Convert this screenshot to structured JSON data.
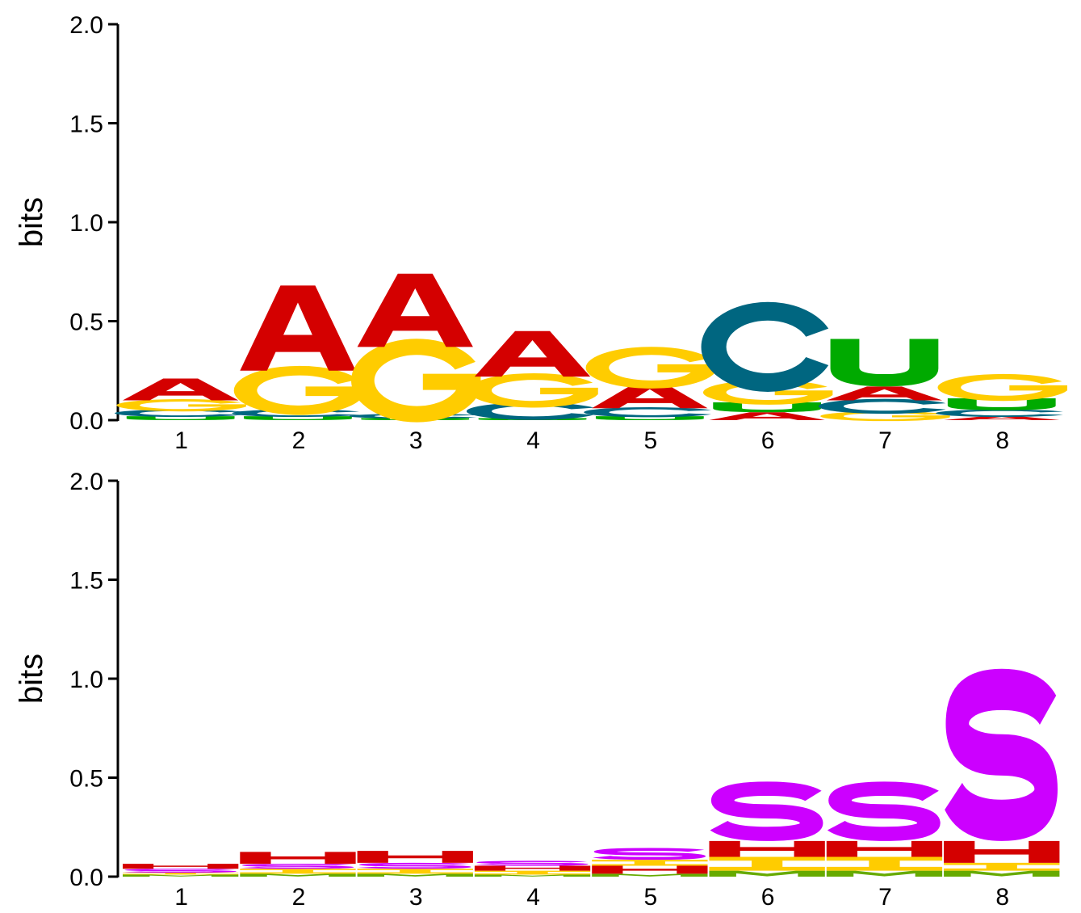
{
  "colors": {
    "A": "#d40000",
    "C": "#006680",
    "G": "#ffcc00",
    "U": "#00aa00",
    "S": "#cc00ff",
    "H": "#d40000",
    "I": "#ffcc00",
    "M": "#66aa00"
  },
  "chart_data": [
    {
      "type": "sequence-logo",
      "ylabel": "bits",
      "ylim": [
        0,
        2.0
      ],
      "yticks": [
        "0.0",
        "0.5",
        "1.0",
        "1.5",
        "2.0"
      ],
      "positions": [
        "1",
        "2",
        "3",
        "4",
        "5",
        "6",
        "7",
        "8"
      ],
      "stacks": [
        [
          {
            "letter": "U",
            "bits": 0.02
          },
          {
            "letter": "C",
            "bits": 0.03
          },
          {
            "letter": "G",
            "bits": 0.05
          },
          {
            "letter": "A",
            "bits": 0.11
          }
        ],
        [
          {
            "letter": "U",
            "bits": 0.02
          },
          {
            "letter": "C",
            "bits": 0.03
          },
          {
            "letter": "G",
            "bits": 0.2
          },
          {
            "letter": "A",
            "bits": 0.43
          }
        ],
        [
          {
            "letter": "U",
            "bits": 0.01
          },
          {
            "letter": "C",
            "bits": 0.02
          },
          {
            "letter": "G",
            "bits": 0.34
          },
          {
            "letter": "A",
            "bits": 0.37
          }
        ],
        [
          {
            "letter": "U",
            "bits": 0.01
          },
          {
            "letter": "C",
            "bits": 0.07
          },
          {
            "letter": "G",
            "bits": 0.14
          },
          {
            "letter": "A",
            "bits": 0.23
          }
        ],
        [
          {
            "letter": "U",
            "bits": 0.02
          },
          {
            "letter": "C",
            "bits": 0.04
          },
          {
            "letter": "A",
            "bits": 0.12
          },
          {
            "letter": "G",
            "bits": 0.17
          }
        ],
        [
          {
            "letter": "A",
            "bits": 0.04
          },
          {
            "letter": "U",
            "bits": 0.05
          },
          {
            "letter": "G",
            "bits": 0.1
          },
          {
            "letter": "C",
            "bits": 0.36
          }
        ],
        [
          {
            "letter": "G",
            "bits": 0.04
          },
          {
            "letter": "C",
            "bits": 0.06
          },
          {
            "letter": "A",
            "bits": 0.07
          },
          {
            "letter": "U",
            "bits": 0.24
          }
        ],
        [
          {
            "letter": "A",
            "bits": 0.02
          },
          {
            "letter": "C",
            "bits": 0.03
          },
          {
            "letter": "U",
            "bits": 0.06
          },
          {
            "letter": "G",
            "bits": 0.11
          }
        ]
      ]
    },
    {
      "type": "sequence-logo",
      "ylabel": "bits",
      "ylim": [
        0,
        2.0
      ],
      "yticks": [
        "0.0",
        "0.5",
        "1.0",
        "1.5",
        "2.0"
      ],
      "positions": [
        "1",
        "2",
        "3",
        "4",
        "5",
        "6",
        "7",
        "8"
      ],
      "stacks": [
        [
          {
            "letter": "M",
            "bits": 0.01
          },
          {
            "letter": "I",
            "bits": 0.01
          },
          {
            "letter": "S",
            "bits": 0.02
          },
          {
            "letter": "H",
            "bits": 0.025
          }
        ],
        [
          {
            "letter": "M",
            "bits": 0.015
          },
          {
            "letter": "I",
            "bits": 0.025
          },
          {
            "letter": "S",
            "bits": 0.025
          },
          {
            "letter": "H",
            "bits": 0.06
          }
        ],
        [
          {
            "letter": "M",
            "bits": 0.015
          },
          {
            "letter": "I",
            "bits": 0.025
          },
          {
            "letter": "S",
            "bits": 0.03
          },
          {
            "letter": "H",
            "bits": 0.06
          }
        ],
        [
          {
            "letter": "M",
            "bits": 0.01
          },
          {
            "letter": "I",
            "bits": 0.02
          },
          {
            "letter": "H",
            "bits": 0.025
          },
          {
            "letter": "S",
            "bits": 0.025
          }
        ],
        [
          {
            "letter": "M",
            "bits": 0.015
          },
          {
            "letter": "H",
            "bits": 0.04
          },
          {
            "letter": "I",
            "bits": 0.03
          },
          {
            "letter": "S",
            "bits": 0.06
          }
        ],
        [
          {
            "letter": "M",
            "bits": 0.03
          },
          {
            "letter": "I",
            "bits": 0.07
          },
          {
            "letter": "H",
            "bits": 0.08
          },
          {
            "letter": "S",
            "bits": 0.3
          }
        ],
        [
          {
            "letter": "M",
            "bits": 0.03
          },
          {
            "letter": "I",
            "bits": 0.07
          },
          {
            "letter": "H",
            "bits": 0.08
          },
          {
            "letter": "S",
            "bits": 0.3
          }
        ],
        [
          {
            "letter": "M",
            "bits": 0.03
          },
          {
            "letter": "I",
            "bits": 0.04
          },
          {
            "letter": "H",
            "bits": 0.11
          },
          {
            "letter": "S",
            "bits": 0.87
          }
        ]
      ]
    }
  ]
}
